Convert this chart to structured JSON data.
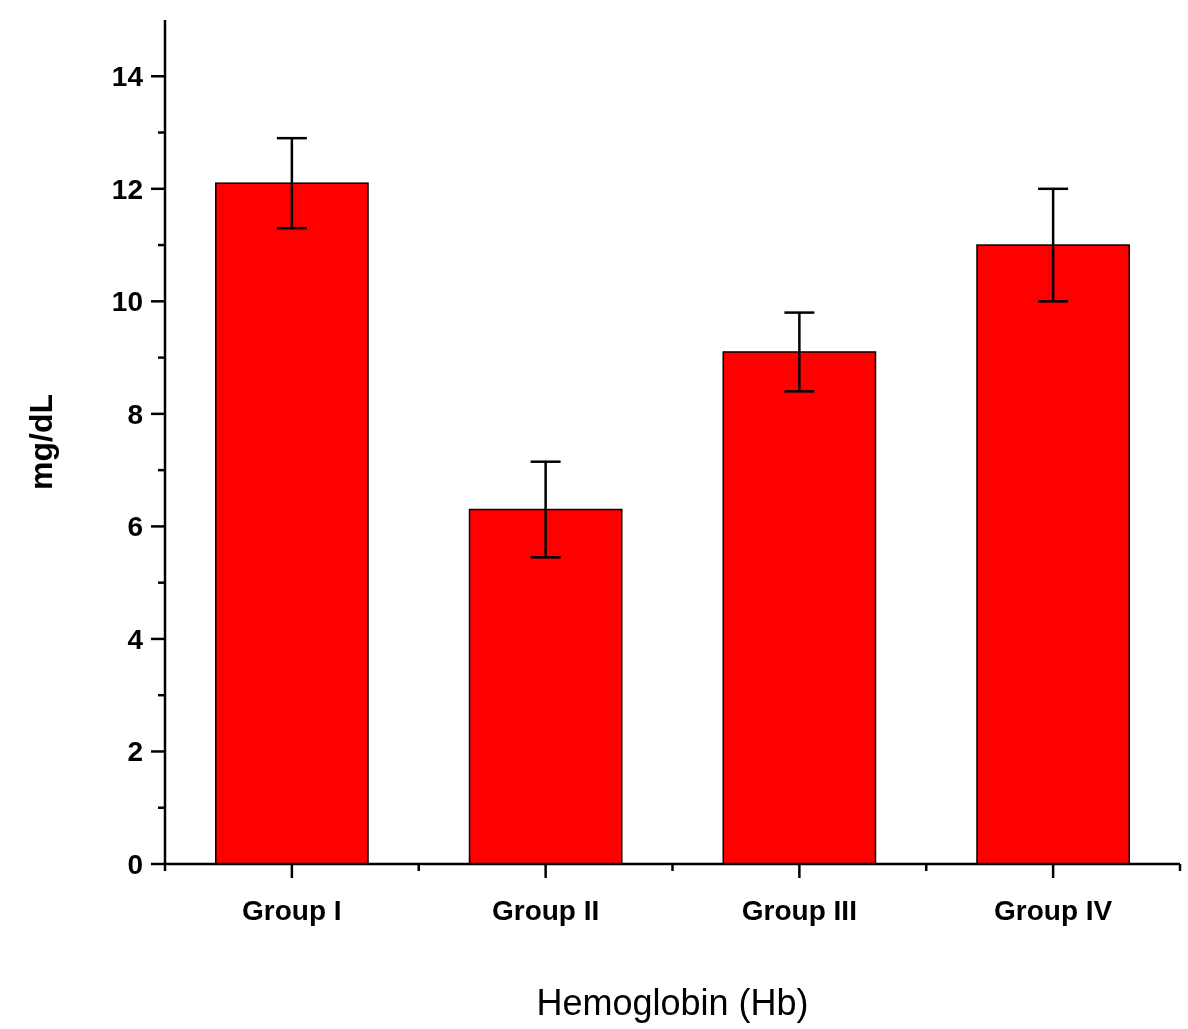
{
  "chart_data": {
    "type": "bar",
    "xlabel": "Hemoglobin (Hb)",
    "ylabel": "mg/dL",
    "categories": [
      "Group I",
      "Group II",
      "Group III",
      "Group IV"
    ],
    "values": [
      12.1,
      6.3,
      9.1,
      11.0
    ],
    "errors": [
      0.8,
      0.85,
      0.7,
      1.0
    ],
    "color": "#ff0000",
    "ylim": [
      0,
      15
    ],
    "yticks": [
      0,
      2,
      4,
      6,
      8,
      10,
      12,
      14
    ]
  }
}
